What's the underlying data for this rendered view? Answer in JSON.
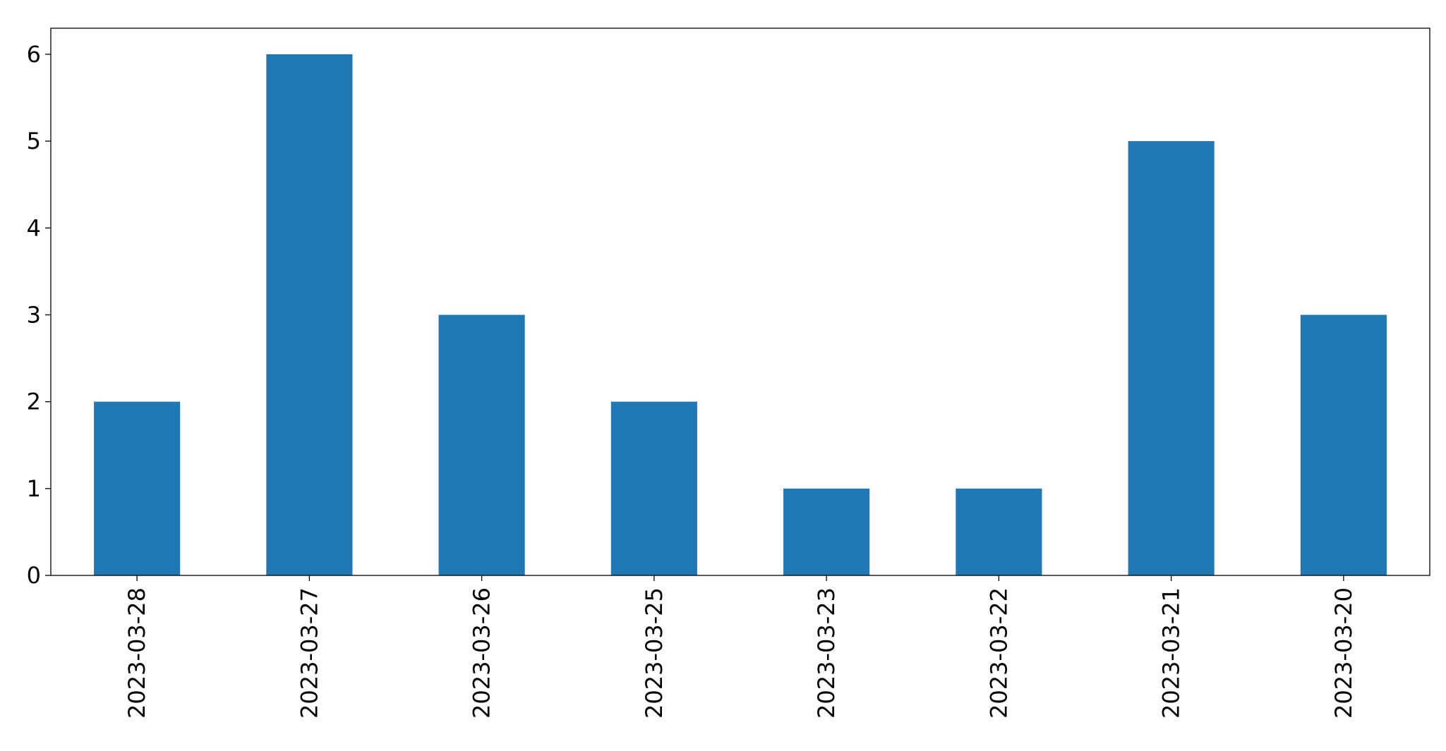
{
  "chart_data": {
    "type": "bar",
    "title": "",
    "xlabel": "",
    "ylabel": "",
    "categories": [
      "2023-03-28",
      "2023-03-27",
      "2023-03-26",
      "2023-03-25",
      "2023-03-23",
      "2023-03-22",
      "2023-03-21",
      "2023-03-20"
    ],
    "values": [
      2,
      6,
      3,
      2,
      1,
      1,
      5,
      3
    ],
    "ylim": [
      0,
      6.3
    ],
    "yticks": [
      "0",
      "1",
      "2",
      "3",
      "4",
      "5",
      "6"
    ],
    "bar_color": "#1f77b4",
    "grid": false,
    "legend": "none"
  }
}
